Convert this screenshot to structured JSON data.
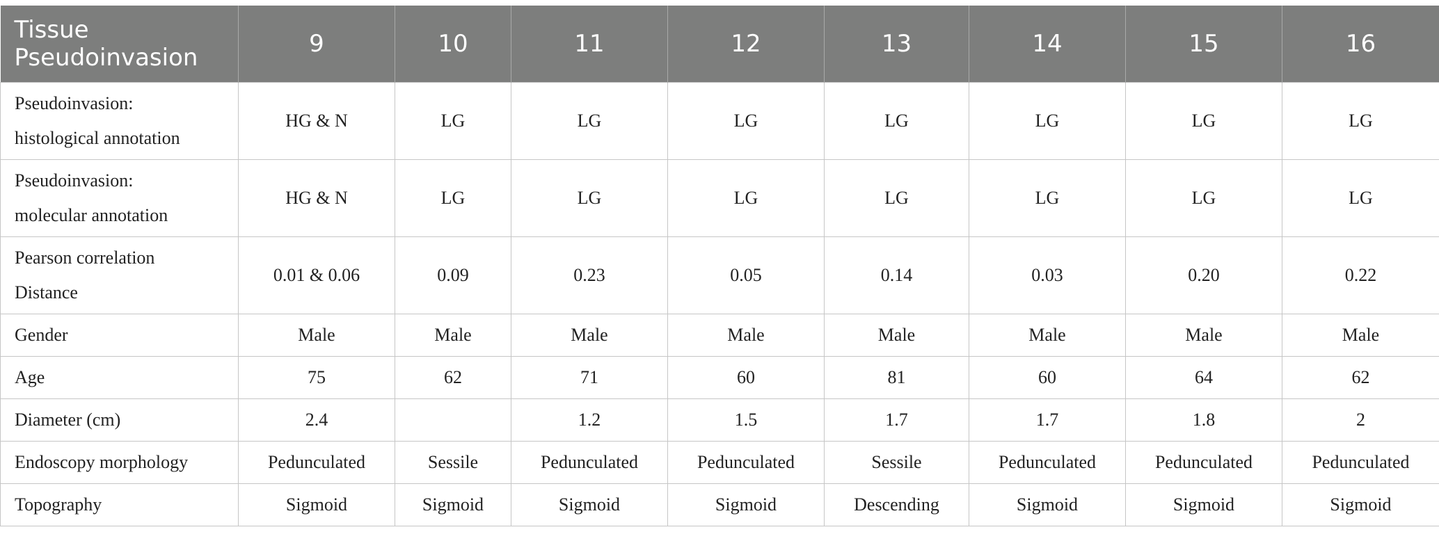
{
  "table": {
    "header_label_line1": "Tissue",
    "header_label_line2": "Pseudoinvasion",
    "columns": [
      "9",
      "10",
      "11",
      "12",
      "13",
      "14",
      "15",
      "16"
    ],
    "rows": [
      {
        "label_line1": "Pseudoinvasion:",
        "label_line2": "histological annotation",
        "cells": [
          "HG & N",
          "LG",
          "LG",
          "LG",
          "LG",
          "LG",
          "LG",
          "LG"
        ]
      },
      {
        "label_line1": "Pseudoinvasion:",
        "label_line2": "molecular annotation",
        "cells": [
          "HG & N",
          "LG",
          "LG",
          "LG",
          "LG",
          "LG",
          "LG",
          "LG"
        ]
      },
      {
        "label_line1": "Pearson correlation",
        "label_line2": "Distance",
        "cells": [
          "0.01 & 0.06",
          "0.09",
          "0.23",
          "0.05",
          "0.14",
          "0.03",
          "0.20",
          "0.22"
        ]
      },
      {
        "label_line1": "Gender",
        "cells": [
          "Male",
          "Male",
          "Male",
          "Male",
          "Male",
          "Male",
          "Male",
          "Male"
        ]
      },
      {
        "label_line1": "Age",
        "cells": [
          "75",
          "62",
          "71",
          "60",
          "81",
          "60",
          "64",
          "62"
        ]
      },
      {
        "label_line1": "Diameter (cm)",
        "cells": [
          "2.4",
          "",
          "1.2",
          "1.5",
          "1.7",
          "1.7",
          "1.8",
          "2"
        ]
      },
      {
        "label_line1": "Endoscopy morphology",
        "cells": [
          "Pedunculated",
          "Sessile",
          "Pedunculated",
          "Pedunculated",
          "Sessile",
          "Pedunculated",
          "Pedunculated",
          "Pedunculated"
        ]
      },
      {
        "label_line1": "Topography",
        "cells": [
          "Sigmoid",
          "Sigmoid",
          "Sigmoid",
          "Sigmoid",
          "Descending",
          "Sigmoid",
          "Sigmoid",
          "Sigmoid"
        ]
      }
    ]
  }
}
